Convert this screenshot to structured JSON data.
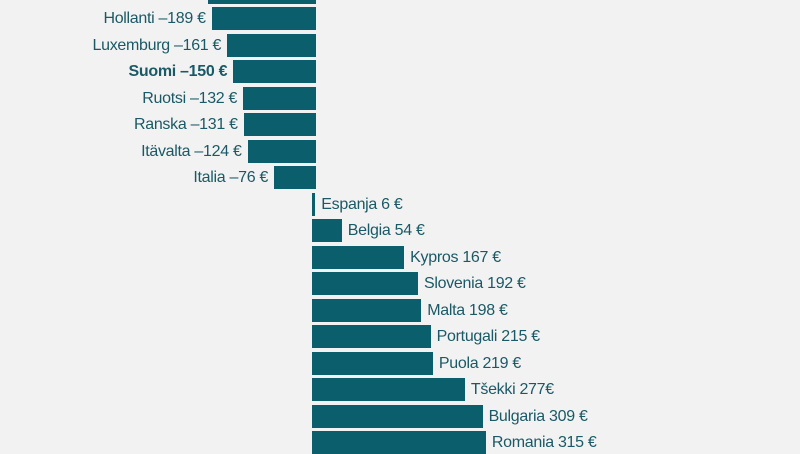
{
  "chart_data": {
    "type": "bar",
    "orientation": "horizontal",
    "diverging": true,
    "bar_color": "#0b5f6c",
    "text_color": "#1a5965",
    "background": "#f2f2f2",
    "unit": "€",
    "bars": [
      {
        "label": "",
        "value": -196,
        "text": ""
      },
      {
        "label": "Hollanti",
        "value": -189,
        "text": "Hollanti –189 €"
      },
      {
        "label": "Luxemburg",
        "value": -161,
        "text": "Luxemburg –161 €"
      },
      {
        "label": "Suomi",
        "value": -150,
        "text": "Suomi –150 €",
        "highlight": true
      },
      {
        "label": "Ruotsi",
        "value": -132,
        "text": "Ruotsi –132 €"
      },
      {
        "label": "Ranska",
        "value": -131,
        "text": "Ranska –131 €"
      },
      {
        "label": "Itävalta",
        "value": -124,
        "text": "Itävalta –124 €"
      },
      {
        "label": "Italia",
        "value": -76,
        "text": "Italia –76 €"
      },
      {
        "label": "Espanja",
        "value": 6,
        "text": "Espanja 6 €"
      },
      {
        "label": "Belgia",
        "value": 54,
        "text": "Belgia 54 €"
      },
      {
        "label": "Kypros",
        "value": 167,
        "text": "Kypros 167 €"
      },
      {
        "label": "Slovenia",
        "value": 192,
        "text": "Slovenia 192 €"
      },
      {
        "label": "Malta",
        "value": 198,
        "text": "Malta 198 €"
      },
      {
        "label": "Portugali",
        "value": 215,
        "text": "Portugali 215 €"
      },
      {
        "label": "Puola",
        "value": 219,
        "text": "Puola 219 €"
      },
      {
        "label": "Tšekki",
        "value": 277,
        "text": "Tšekki 277€"
      },
      {
        "label": "Bulgaria",
        "value": 309,
        "text": "Bulgaria 309 €"
      },
      {
        "label": "Romania",
        "value": 315,
        "text": "Romania 315 €"
      }
    ]
  }
}
